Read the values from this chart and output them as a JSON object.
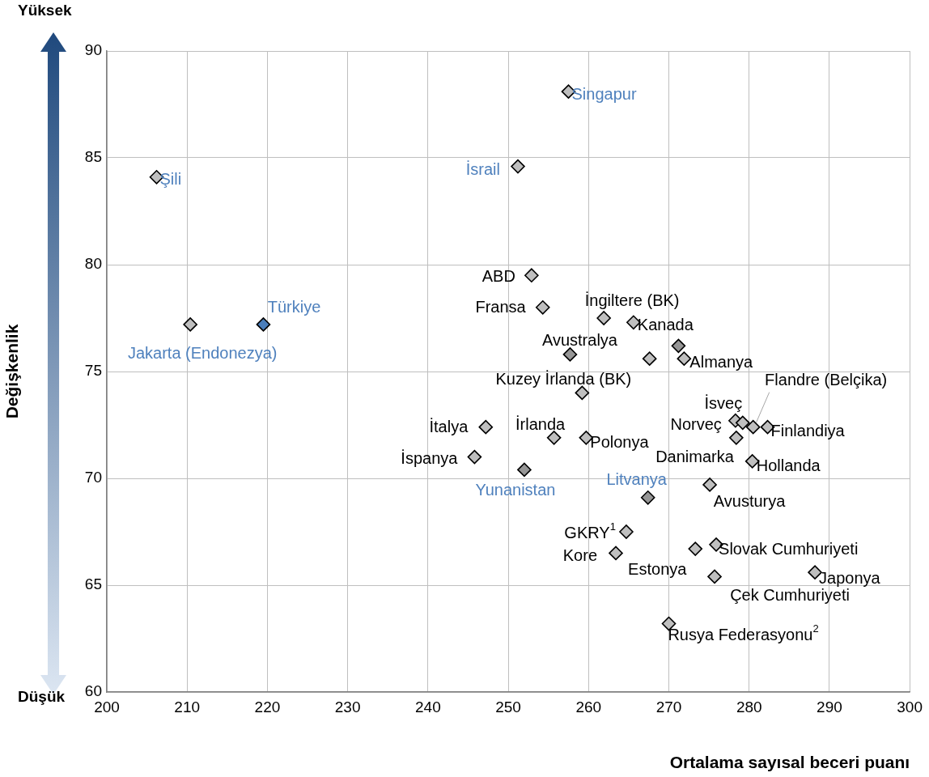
{
  "chart_data": {
    "type": "scatter",
    "xlabel": "Ortalama sayısal beceri puanı",
    "ylabel": "Değişkenlik",
    "x": [
      257.5,
      251.2,
      206.2,
      252.9,
      254.3,
      261.9,
      265.6,
      210.4,
      219.5,
      257.7,
      271.9,
      259.2,
      278.3,
      279.2,
      280.5,
      282.3,
      278.4,
      280.4,
      275.1,
      267.4,
      247.2,
      255.7,
      259.7,
      245.8,
      252.0,
      264.7,
      263.4,
      273.3,
      275.9,
      275.7,
      288.2,
      270.0,
      267.6,
      271.2
    ],
    "values": [
      88.1,
      84.6,
      84.1,
      79.5,
      78.0,
      77.5,
      77.3,
      77.2,
      77.2,
      75.8,
      75.6,
      74.0,
      72.7,
      72.6,
      72.4,
      72.4,
      71.9,
      70.8,
      69.7,
      69.1,
      72.4,
      71.9,
      71.9,
      71.0,
      70.4,
      67.5,
      66.5,
      66.7,
      66.9,
      65.4,
      65.6,
      63.2,
      75.6,
      76.2
    ],
    "colors": [
      "#bfbfbf",
      "#bfbfbf",
      "#bfbfbf",
      "#bfbfbf",
      "#bfbfbf",
      "#bfbfbf",
      "#bfbfbf",
      "#bfbfbf",
      "#4a7ebb",
      "#969696",
      "#bfbfbf",
      "#bfbfbf",
      "#bfbfbf",
      "#bfbfbf",
      "#bfbfbf",
      "#bfbfbf",
      "#bfbfbf",
      "#bfbfbf",
      "#bfbfbf",
      "#969696",
      "#bfbfbf",
      "#bfbfbf",
      "#bfbfbf",
      "#bfbfbf",
      "#969696",
      "#bfbfbf",
      "#bfbfbf",
      "#bfbfbf",
      "#bfbfbf",
      "#bfbfbf",
      "#bfbfbf",
      "#bfbfbf",
      "#bfbfbf",
      "#969696"
    ],
    "marker": "diamond",
    "xlim": [
      200,
      300
    ],
    "xticks": [
      200,
      210,
      220,
      230,
      240,
      250,
      260,
      270,
      280,
      290,
      300
    ],
    "ylim": [
      60,
      90
    ],
    "yticks": [
      60,
      65,
      70,
      75,
      80,
      85,
      90
    ],
    "grid": true,
    "legend": false,
    "annotations": [
      {
        "text": "Singapur",
        "x": 257.5,
        "y": 88.1
      },
      {
        "text": "İsrail",
        "x": 251.2,
        "y": 84.6
      },
      {
        "text": "Şili",
        "x": 206.2,
        "y": 84.1
      },
      {
        "text": "ABD",
        "x": 252.9,
        "y": 79.5
      },
      {
        "text": "Fransa",
        "x": 254.3,
        "y": 78.0
      },
      {
        "text": "İngiltere (BK)",
        "x": 261.9,
        "y": 77.5
      },
      {
        "text": "Kanada",
        "x": 265.6,
        "y": 77.3
      },
      {
        "text": "Jakarta (Endonezya)",
        "x": 210.4,
        "y": 77.2
      },
      {
        "text": "Türkiye",
        "x": 219.5,
        "y": 77.2
      },
      {
        "text": "Avustralya",
        "x": 257.7,
        "y": 75.8
      },
      {
        "text": "Almanya",
        "x": 271.9,
        "y": 75.6
      },
      {
        "text": "Kuzey İrlanda (BK)",
        "x": 259.2,
        "y": 74.0
      },
      {
        "text": "İsveç",
        "x": 278.3,
        "y": 72.7
      },
      {
        "text": "Norveç",
        "x": 279.2,
        "y": 72.6
      },
      {
        "text": "Flandre (Belçika)",
        "x": 280.5,
        "y": 72.4
      },
      {
        "text": "Finlandiya",
        "x": 282.3,
        "y": 72.4
      },
      {
        "text": "Danimarka",
        "x": 278.4,
        "y": 71.9
      },
      {
        "text": "Hollanda",
        "x": 280.4,
        "y": 70.8
      },
      {
        "text": "Avusturya",
        "x": 275.1,
        "y": 69.7
      },
      {
        "text": "Litvanya",
        "x": 267.4,
        "y": 69.1
      },
      {
        "text": "İtalya",
        "x": 247.2,
        "y": 72.4
      },
      {
        "text": "İrlanda",
        "x": 255.7,
        "y": 71.9
      },
      {
        "text": "Polonya",
        "x": 259.7,
        "y": 71.9
      },
      {
        "text": "İspanya",
        "x": 245.8,
        "y": 71.0
      },
      {
        "text": "Yunanistan",
        "x": 252.0,
        "y": 70.4
      },
      {
        "text": "GKRY$^{1}$",
        "x": 264.7,
        "y": 67.5
      },
      {
        "text": "Kore",
        "x": 263.4,
        "y": 66.5
      },
      {
        "text": "Estonya",
        "x": 273.3,
        "y": 66.7
      },
      {
        "text": "Slovak Cumhuriyeti",
        "x": 275.9,
        "y": 66.9
      },
      {
        "text": "Çek Cumhuriyeti",
        "x": 275.7,
        "y": 65.4
      },
      {
        "text": "Japonya",
        "x": 288.2,
        "y": 65.6
      },
      {
        "text": "Rusya Federasyonu$^{2}$",
        "x": 270.0,
        "y": 63.2
      },
      "Yüksek",
      "Düşük"
    ]
  }
}
